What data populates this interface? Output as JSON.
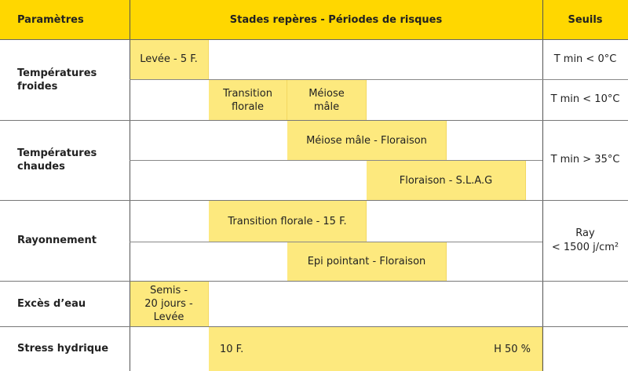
{
  "header": {
    "params": "Paramètres",
    "stages": "Stades repères - Périodes de risques",
    "seuils": "Seuils"
  },
  "rows": [
    {
      "param": "Températures froides",
      "bars": [
        "Levée - 5 F.",
        "Transition florale",
        "Méiose mâle"
      ],
      "seuils": [
        "T min < 0°C",
        "T min < 10°C"
      ]
    },
    {
      "param": "Températures chaudes",
      "bars": [
        "Méiose mâle - Floraison",
        "Floraison - S.L.A.G"
      ],
      "seuils": [
        "T min > 35°C"
      ]
    },
    {
      "param": "Rayonnement",
      "bars": [
        "Transition florale - 15 F.",
        "Epi pointant - Floraison"
      ],
      "seuils": [
        "Ray",
        "< 1500 j/cm²"
      ]
    },
    {
      "param": "Excès d’eau",
      "bars": [
        "Semis - 20 jours - Levée"
      ],
      "seuils": []
    },
    {
      "param": "Stress hydrique",
      "bars": [
        "10 F.",
        "H 50 %"
      ],
      "seuils": []
    }
  ],
  "colors": {
    "header": "#FFD700",
    "bar": "#FDE97E"
  }
}
